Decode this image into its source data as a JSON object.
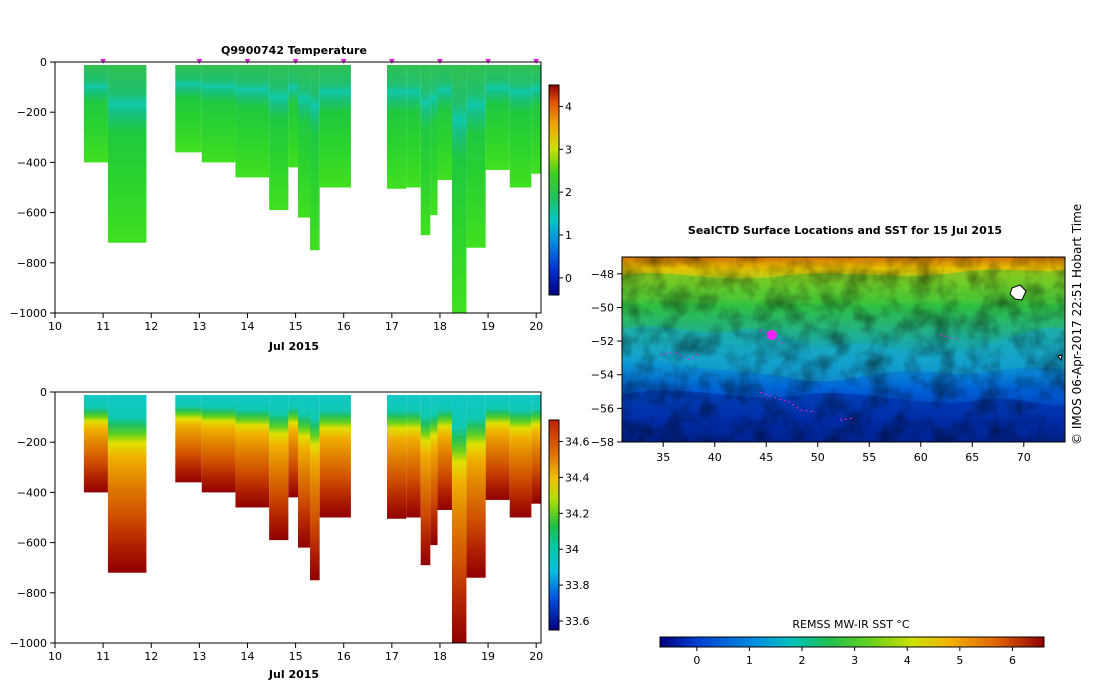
{
  "chart_data": [
    {
      "type": "heatmap",
      "title": "Q9900742  Temperature",
      "xlabel": "Jul 2015",
      "ylabel": "",
      "x_ticks": [
        "10",
        "11",
        "12",
        "13",
        "14",
        "15",
        "16",
        "17",
        "18",
        "19",
        "20"
      ],
      "y_ticks": [
        "0",
        "−200",
        "−400",
        "−600",
        "−800",
        "−1000"
      ],
      "xlim": [
        10,
        20.1
      ],
      "ylim": [
        -1000,
        0
      ],
      "colorbar": {
        "range": [
          -0.4,
          4.5
        ],
        "ticks": [
          "0",
          "1",
          "2",
          "3",
          "4"
        ]
      },
      "profile_markers_day": [
        11,
        13,
        14,
        15,
        16,
        17,
        18,
        19,
        20
      ],
      "profiles": [
        {
          "x0": 10.6,
          "x1": 11.1,
          "depth": 400
        },
        {
          "x0": 11.1,
          "x1": 11.9,
          "depth": 720
        },
        {
          "x0": 12.5,
          "x1": 13.05,
          "depth": 360
        },
        {
          "x0": 13.05,
          "x1": 13.75,
          "depth": 400
        },
        {
          "x0": 13.75,
          "x1": 14.45,
          "depth": 460
        },
        {
          "x0": 14.45,
          "x1": 14.85,
          "depth": 590
        },
        {
          "x0": 14.85,
          "x1": 15.05,
          "depth": 420
        },
        {
          "x0": 15.05,
          "x1": 15.3,
          "depth": 620
        },
        {
          "x0": 15.3,
          "x1": 15.5,
          "depth": 750
        },
        {
          "x0": 15.5,
          "x1": 16.15,
          "depth": 500
        },
        {
          "x0": 16.9,
          "x1": 17.3,
          "depth": 505
        },
        {
          "x0": 17.3,
          "x1": 17.6,
          "depth": 500
        },
        {
          "x0": 17.6,
          "x1": 17.8,
          "depth": 690
        },
        {
          "x0": 17.8,
          "x1": 17.95,
          "depth": 610
        },
        {
          "x0": 17.95,
          "x1": 18.25,
          "depth": 470
        },
        {
          "x0": 18.25,
          "x1": 18.55,
          "depth": 1000
        },
        {
          "x0": 18.55,
          "x1": 18.95,
          "depth": 740
        },
        {
          "x0": 18.95,
          "x1": 19.45,
          "depth": 430
        },
        {
          "x0": 19.45,
          "x1": 19.9,
          "depth": 500
        },
        {
          "x0": 19.9,
          "x1": 20.1,
          "depth": 445
        }
      ]
    },
    {
      "type": "heatmap",
      "title": "",
      "xlabel": "Jul 2015",
      "ylabel": "",
      "x_ticks": [
        "10",
        "11",
        "12",
        "13",
        "14",
        "15",
        "16",
        "17",
        "18",
        "19",
        "20"
      ],
      "y_ticks": [
        "0",
        "−200",
        "−400",
        "−600",
        "−800",
        "−1000"
      ],
      "xlim": [
        10,
        20.1
      ],
      "ylim": [
        -1000,
        0
      ],
      "colorbar": {
        "range": [
          33.55,
          34.72
        ],
        "ticks": [
          "33.6",
          "33.8",
          "34",
          "34.2",
          "34.4",
          "34.6"
        ]
      }
    },
    {
      "type": "heatmap",
      "title": "SealCTD Surface Locations and SST for 15 Jul 2015",
      "xlabel": "",
      "ylabel": "",
      "x_ticks": [
        "35",
        "40",
        "45",
        "50",
        "55",
        "60",
        "65",
        "70"
      ],
      "y_ticks": [
        "−48",
        "−50",
        "−52",
        "−54",
        "−56",
        "−58"
      ],
      "xlim": [
        31,
        74
      ],
      "ylim": [
        -58,
        -47
      ],
      "colorbar": {
        "label": "REMSS MW-IR SST °C",
        "range": [
          -0.7,
          6.6
        ],
        "ticks": [
          "0",
          "1",
          "2",
          "3",
          "4",
          "5",
          "6"
        ]
      }
    }
  ],
  "credit": "©  IMOS 06-Apr-2017 22:51 Hobart Time"
}
